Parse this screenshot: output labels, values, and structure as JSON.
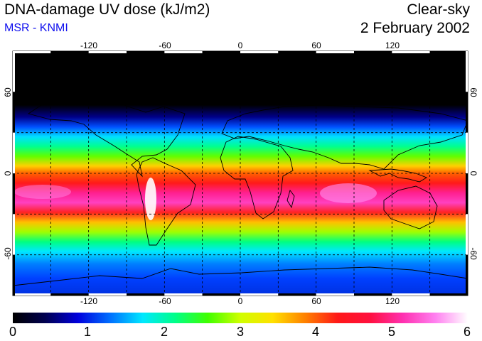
{
  "header": {
    "title": "DNA-damage UV dose (kJ/m2)",
    "source": "MSR - KNMI",
    "sky_condition": "Clear-sky",
    "date": "2 February 2002"
  },
  "map": {
    "projection": "equirectangular",
    "lon_range": [
      -180,
      180
    ],
    "lat_range": [
      -90,
      90
    ],
    "lon_ticks": [
      "-120",
      "-60",
      "0",
      "60",
      "120"
    ],
    "lat_ticks_left": [
      "60",
      "0",
      "-60"
    ],
    "lat_ticks_right": [
      "60",
      "0",
      "-60"
    ],
    "grid_lon_values": [
      -150,
      -120,
      -90,
      -60,
      -30,
      0,
      30,
      60,
      90,
      120,
      150
    ],
    "grid_lat_values": [
      -60,
      -30,
      0,
      30,
      60
    ],
    "grid": "dashed",
    "background_color": "#000000",
    "coastline_color": "#000000"
  },
  "colorbar": {
    "labels": [
      "0",
      "1",
      "2",
      "3",
      "4",
      "5",
      "6"
    ],
    "min": 0,
    "max": 6,
    "colors": [
      "#000000",
      "#000050",
      "#0000dd",
      "#0070ff",
      "#00e8ff",
      "#00ff88",
      "#40ff00",
      "#d0ff00",
      "#ffe000",
      "#ff8000",
      "#ff1818",
      "#ff1040",
      "#ff30b0",
      "#ff80f0",
      "#ffffff"
    ]
  }
}
